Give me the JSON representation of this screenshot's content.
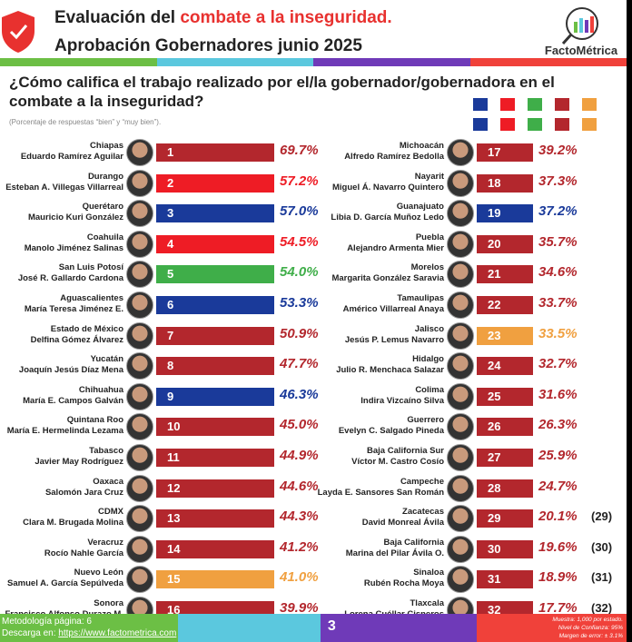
{
  "header": {
    "title_prefix": "Evaluación del ",
    "title_highlight": "combate a la inseguridad.",
    "subtitle": "Aprobación Gobernadores junio 2025",
    "logo_text": "FactoMétrica"
  },
  "stripe_colors": [
    "#6cbf45",
    "#5bc8de",
    "#6f3ab8",
    "#f0413a"
  ],
  "question": "¿Cómo califica el trabajo realizado por el/la gobernador/gobernadora en el combate a la inseguridad?",
  "note": "(Porcentaje de respuestas “bien” y “muy bien”).",
  "party_colors": {
    "PAN": "#1a3a9a",
    "PRI": "#ee1c25",
    "PVEM": "#3fae49",
    "MORENA": "#b3272d",
    "MC": "#f0a040"
  },
  "chart_data": {
    "type": "bar",
    "title": "",
    "categories": [
      "Chiapas",
      "Durango",
      "Querétaro",
      "Coahuila",
      "San Luis Potosí",
      "Aguascalientes",
      "Estado de México",
      "Yucatán",
      "Chihuahua",
      "Quintana Roo",
      "Tabasco",
      "Oaxaca",
      "CDMX",
      "Veracruz",
      "Nuevo León",
      "Sonora",
      "Michoacán",
      "Nayarit",
      "Guanajuato",
      "Puebla",
      "Morelos",
      "Tamaulipas",
      "Jalisco",
      "Hidalgo",
      "Colima",
      "Guerrero",
      "Baja California Sur",
      "Campeche",
      "Zacatecas",
      "Baja California",
      "Sinaloa",
      "Tlaxcala"
    ],
    "governors": [
      "Eduardo Ramírez Aguilar",
      "Esteban A. Villegas Villarreal",
      "Mauricio Kuri González",
      "Manolo Jiménez Salinas",
      "José R. Gallardo Cardona",
      "María Teresa Jiménez E.",
      "Delfina Gómez Álvarez",
      "Joaquín Jesús Díaz Mena",
      "María E. Campos Galván",
      "María E. Hermelinda Lezama",
      "Javier May Rodríguez",
      "Salomón Jara Cruz",
      "Clara M. Brugada Molina",
      "Rocío Nahle García",
      "Samuel A. García Sepúlveda",
      "Francisco Alfonso Durazo M.",
      "Alfredo Ramírez Bedolla",
      "Miguel Á. Navarro Quintero",
      "Libia D. García Muñoz Ledo",
      "Alejandro Armenta Mier",
      "Margarita González Saravia",
      "Américo Villarreal Anaya",
      "Jesús P. Lemus Navarro",
      "Julio R. Menchaca Salazar",
      "Indira Vizcaíno Silva",
      "Evelyn C. Salgado Pineda",
      "Víctor M. Castro Cosío",
      "Layda E. Sansores San Román",
      "David Monreal Ávila",
      "Marina del Pilar Ávila O.",
      "Rubén Rocha Moya",
      "Lorena Cuéllar Cisneros"
    ],
    "values": [
      69.7,
      57.2,
      57.0,
      54.5,
      54.0,
      53.3,
      50.9,
      47.7,
      46.3,
      45.0,
      44.9,
      44.6,
      44.3,
      41.2,
      41.0,
      39.9,
      39.2,
      37.3,
      37.2,
      35.7,
      34.6,
      33.7,
      33.5,
      32.7,
      31.6,
      26.3,
      25.9,
      24.7,
      20.1,
      19.6,
      18.9,
      17.7
    ],
    "value_labels": [
      "69.7%",
      "57.2%",
      "57.0%",
      "54.5%",
      "54.0%",
      "53.3%",
      "50.9%",
      "47.7%",
      "46.3%",
      "45.0%",
      "44.9%",
      "44.6%",
      "44.3%",
      "41.2%",
      "41.0%",
      "39.9%",
      "39.2%",
      "37.3%",
      "37.2%",
      "35.7%",
      "34.6%",
      "33.7%",
      "33.5%",
      "32.7%",
      "31.6%",
      "26.3%",
      "25.9%",
      "24.7%",
      "20.1%",
      "19.6%",
      "18.9%",
      "17.7%"
    ],
    "ranks": [
      "1",
      "2",
      "3",
      "4",
      "5",
      "6",
      "7",
      "8",
      "9",
      "10",
      "11",
      "12",
      "13",
      "14",
      "15",
      "16",
      "17",
      "18",
      "19",
      "20",
      "21",
      "22",
      "23",
      "24",
      "25",
      "26",
      "27",
      "28",
      "29",
      "30",
      "31",
      "32"
    ],
    "outside_ranks": {
      "28": "(29)",
      "29": "(30)",
      "30": "(31)",
      "31": "(32)"
    },
    "parties": [
      "MORENA",
      "PRI",
      "PAN",
      "PRI",
      "PVEM",
      "PAN",
      "MORENA",
      "MORENA",
      "PAN",
      "MORENA",
      "MORENA",
      "MORENA",
      "MORENA",
      "MORENA",
      "MC",
      "MORENA",
      "MORENA",
      "MORENA",
      "PAN",
      "MORENA",
      "MORENA",
      "MORENA",
      "MC",
      "MORENA",
      "MORENA",
      "MORENA",
      "MORENA",
      "MORENA",
      "MORENA",
      "MORENA",
      "MORENA",
      "MORENA"
    ]
  },
  "footer": {
    "methodology": "Metodología página: 6",
    "download_prefix": "Descarga en: ",
    "download_link": "https://www.factometrica.com",
    "page_number": "3",
    "sample": "Muestra: 1,000 por estado.",
    "confidence": "Nivel de Confianza: 95%",
    "margin": "Margen de error: ± 3.1%"
  }
}
